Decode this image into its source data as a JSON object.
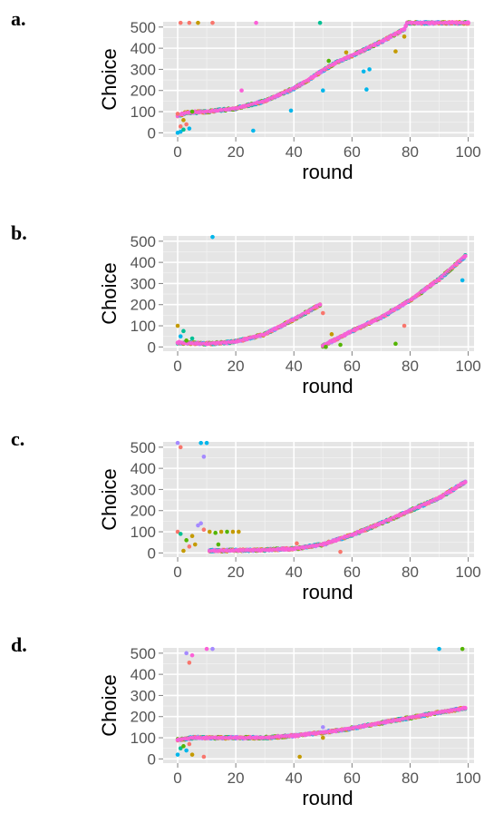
{
  "palette": [
    "#F8766D",
    "#C49A00",
    "#53B400",
    "#00C094",
    "#00B6EB",
    "#A58AFF",
    "#FB61D7"
  ],
  "chart_data": [
    {
      "panel_label": "a.",
      "type": "scatter",
      "xlabel": "round",
      "ylabel": "Choice",
      "xlim": [
        -5,
        102
      ],
      "ylim": [
        -20,
        525
      ],
      "xticks": [
        0,
        20,
        40,
        60,
        80,
        100
      ],
      "yticks": [
        0,
        100,
        200,
        300,
        400,
        500
      ],
      "grid": true,
      "legend": "none",
      "trend": [
        [
          0,
          80
        ],
        [
          3,
          95
        ],
        [
          10,
          100
        ],
        [
          20,
          115
        ],
        [
          30,
          150
        ],
        [
          40,
          210
        ],
        [
          45,
          250
        ],
        [
          50,
          295
        ],
        [
          55,
          335
        ],
        [
          60,
          365
        ],
        [
          70,
          430
        ],
        [
          78,
          490
        ],
        [
          79,
          520
        ],
        [
          100,
          520
        ]
      ],
      "outliers": [
        {
          "x": 0,
          "y": 0,
          "c": 4
        },
        {
          "x": 1,
          "y": 5,
          "c": 4
        },
        {
          "x": 1,
          "y": 30,
          "c": 0
        },
        {
          "x": 2,
          "y": 60,
          "c": 1
        },
        {
          "x": 2,
          "y": 15,
          "c": 3
        },
        {
          "x": 3,
          "y": 40,
          "c": 0
        },
        {
          "x": 4,
          "y": 20,
          "c": 4
        },
        {
          "x": 0,
          "y": 90,
          "c": 0
        },
        {
          "x": 5,
          "y": 100,
          "c": 2
        },
        {
          "x": 22,
          "y": 200,
          "c": 6
        },
        {
          "x": 26,
          "y": 10,
          "c": 4
        },
        {
          "x": 39,
          "y": 105,
          "c": 4
        },
        {
          "x": 50,
          "y": 200,
          "c": 4
        },
        {
          "x": 52,
          "y": 340,
          "c": 2
        },
        {
          "x": 58,
          "y": 380,
          "c": 1
        },
        {
          "x": 64,
          "y": 290,
          "c": 4
        },
        {
          "x": 65,
          "y": 205,
          "c": 4
        },
        {
          "x": 66,
          "y": 300,
          "c": 4
        },
        {
          "x": 75,
          "y": 385,
          "c": 1
        },
        {
          "x": 78,
          "y": 455,
          "c": 1
        },
        {
          "x": 1,
          "y": 520,
          "c": 0
        },
        {
          "x": 4,
          "y": 520,
          "c": 0
        },
        {
          "x": 7,
          "y": 520,
          "c": 1
        },
        {
          "x": 12,
          "y": 520,
          "c": 0
        },
        {
          "x": 27,
          "y": 520,
          "c": 6
        },
        {
          "x": 49,
          "y": 520,
          "c": 3
        }
      ]
    },
    {
      "panel_label": "b.",
      "type": "scatter",
      "xlabel": "round",
      "ylabel": "Choice",
      "xlim": [
        -5,
        102
      ],
      "ylim": [
        -20,
        525
      ],
      "xticks": [
        0,
        20,
        40,
        60,
        80,
        100
      ],
      "yticks": [
        0,
        100,
        200,
        300,
        400,
        500
      ],
      "grid": true,
      "legend": "none",
      "trend_segments": [
        [
          [
            0,
            20
          ],
          [
            10,
            15
          ],
          [
            20,
            25
          ],
          [
            30,
            60
          ],
          [
            40,
            130
          ],
          [
            49,
            200
          ]
        ],
        [
          [
            50,
            5
          ],
          [
            60,
            75
          ],
          [
            70,
            140
          ],
          [
            80,
            220
          ],
          [
            90,
            320
          ],
          [
            99,
            430
          ]
        ]
      ],
      "outliers": [
        {
          "x": 0,
          "y": 100,
          "c": 1
        },
        {
          "x": 1,
          "y": 50,
          "c": 4
        },
        {
          "x": 2,
          "y": 75,
          "c": 3
        },
        {
          "x": 3,
          "y": 30,
          "c": 2
        },
        {
          "x": 5,
          "y": 40,
          "c": 3
        },
        {
          "x": 12,
          "y": 520,
          "c": 4
        },
        {
          "x": 50,
          "y": 160,
          "c": 0
        },
        {
          "x": 51,
          "y": 0,
          "c": 2
        },
        {
          "x": 53,
          "y": 60,
          "c": 1
        },
        {
          "x": 56,
          "y": 10,
          "c": 2
        },
        {
          "x": 75,
          "y": 15,
          "c": 2
        },
        {
          "x": 78,
          "y": 100,
          "c": 0
        },
        {
          "x": 98,
          "y": 315,
          "c": 4
        }
      ]
    },
    {
      "panel_label": "c.",
      "type": "scatter",
      "xlabel": "round",
      "ylabel": "Choice",
      "xlim": [
        -5,
        102
      ],
      "ylim": [
        -20,
        525
      ],
      "xticks": [
        0,
        20,
        40,
        60,
        80,
        100
      ],
      "yticks": [
        0,
        100,
        200,
        300,
        400,
        500
      ],
      "grid": true,
      "legend": "none",
      "trend": [
        [
          11,
          10
        ],
        [
          20,
          12
        ],
        [
          30,
          14
        ],
        [
          40,
          20
        ],
        [
          50,
          40
        ],
        [
          60,
          85
        ],
        [
          70,
          140
        ],
        [
          80,
          200
        ],
        [
          90,
          260
        ],
        [
          99,
          335
        ]
      ],
      "outliers": [
        {
          "x": 0,
          "y": 520,
          "c": 5
        },
        {
          "x": 1,
          "y": 500,
          "c": 0
        },
        {
          "x": 8,
          "y": 520,
          "c": 4
        },
        {
          "x": 10,
          "y": 520,
          "c": 4
        },
        {
          "x": 9,
          "y": 455,
          "c": 5
        },
        {
          "x": 0,
          "y": 100,
          "c": 0
        },
        {
          "x": 1,
          "y": 90,
          "c": 3
        },
        {
          "x": 3,
          "y": 60,
          "c": 2
        },
        {
          "x": 5,
          "y": 80,
          "c": 1
        },
        {
          "x": 6,
          "y": 40,
          "c": 1
        },
        {
          "x": 7,
          "y": 130,
          "c": 5
        },
        {
          "x": 8,
          "y": 140,
          "c": 5
        },
        {
          "x": 9,
          "y": 110,
          "c": 0
        },
        {
          "x": 11,
          "y": 100,
          "c": 1
        },
        {
          "x": 13,
          "y": 95,
          "c": 2
        },
        {
          "x": 15,
          "y": 100,
          "c": 1
        },
        {
          "x": 17,
          "y": 100,
          "c": 2
        },
        {
          "x": 19,
          "y": 100,
          "c": 1
        },
        {
          "x": 21,
          "y": 100,
          "c": 1
        },
        {
          "x": 2,
          "y": 10,
          "c": 1
        },
        {
          "x": 4,
          "y": 30,
          "c": 0
        },
        {
          "x": 14,
          "y": 40,
          "c": 2
        },
        {
          "x": 41,
          "y": 45,
          "c": 0
        },
        {
          "x": 56,
          "y": 5,
          "c": 0
        }
      ]
    },
    {
      "panel_label": "d.",
      "type": "scatter",
      "xlabel": "round",
      "ylabel": "Choice",
      "xlim": [
        -5,
        102
      ],
      "ylim": [
        -20,
        525
      ],
      "xticks": [
        0,
        20,
        40,
        60,
        80,
        100
      ],
      "yticks": [
        0,
        100,
        200,
        300,
        400,
        500
      ],
      "grid": true,
      "legend": "none",
      "trend": [
        [
          0,
          90
        ],
        [
          5,
          100
        ],
        [
          20,
          100
        ],
        [
          30,
          100
        ],
        [
          40,
          110
        ],
        [
          50,
          125
        ],
        [
          60,
          145
        ],
        [
          70,
          170
        ],
        [
          80,
          195
        ],
        [
          90,
          220
        ],
        [
          99,
          240
        ]
      ],
      "outliers": [
        {
          "x": 3,
          "y": 500,
          "c": 5
        },
        {
          "x": 4,
          "y": 455,
          "c": 0
        },
        {
          "x": 5,
          "y": 490,
          "c": 6
        },
        {
          "x": 10,
          "y": 520,
          "c": 6
        },
        {
          "x": 12,
          "y": 520,
          "c": 5
        },
        {
          "x": 90,
          "y": 520,
          "c": 4
        },
        {
          "x": 98,
          "y": 520,
          "c": 2
        },
        {
          "x": 0,
          "y": 20,
          "c": 4
        },
        {
          "x": 1,
          "y": 50,
          "c": 3
        },
        {
          "x": 2,
          "y": 60,
          "c": 2
        },
        {
          "x": 3,
          "y": 40,
          "c": 4
        },
        {
          "x": 4,
          "y": 70,
          "c": 0
        },
        {
          "x": 5,
          "y": 20,
          "c": 1
        },
        {
          "x": 9,
          "y": 10,
          "c": 0
        },
        {
          "x": 42,
          "y": 10,
          "c": 1
        },
        {
          "x": 50,
          "y": 100,
          "c": 1
        },
        {
          "x": 50,
          "y": 150,
          "c": 5
        }
      ]
    }
  ]
}
